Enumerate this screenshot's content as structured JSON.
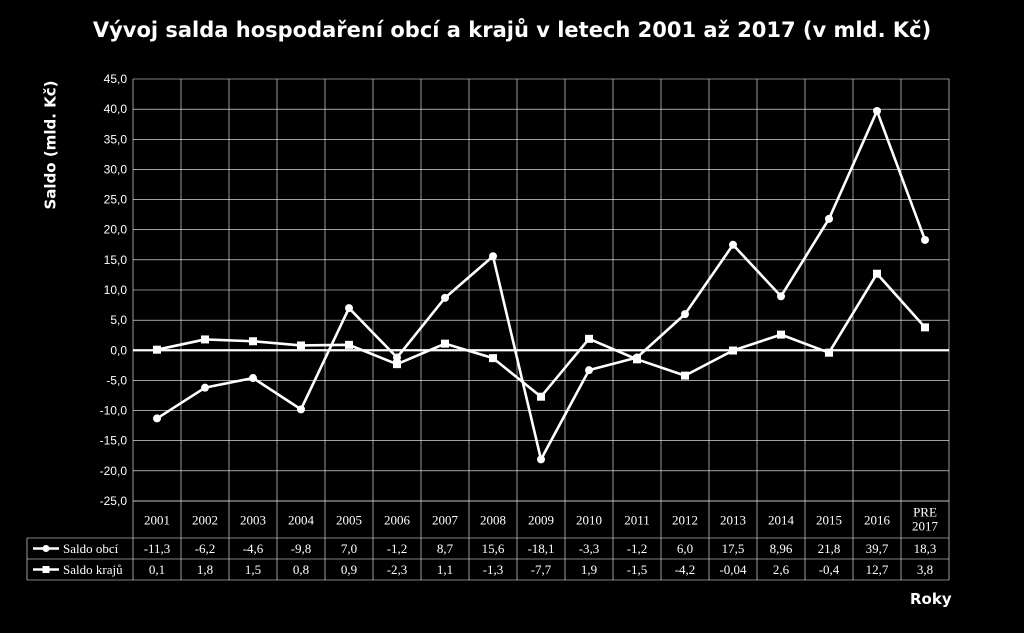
{
  "chart_data": {
    "type": "line",
    "title": "Vývoj salda hospodaření obcí a krajů v letech 2001 až 2017 (v mld. Kč)",
    "ylabel": "Saldo (mld. Kč)",
    "xlabel": "Roky",
    "ylim": [
      -25,
      45
    ],
    "yticks": [
      "45,0",
      "40,0",
      "35,0",
      "30,0",
      "25,0",
      "20,0",
      "15,0",
      "10,0",
      "5,0",
      "0,0",
      "-5,0",
      "-10,0",
      "-15,0",
      "-20,0",
      "-25,0"
    ],
    "grid": true,
    "categories": [
      "2001",
      "2002",
      "2003",
      "2004",
      "2005",
      "2006",
      "2007",
      "2008",
      "2009",
      "2010",
      "2011",
      "2012",
      "2013",
      "2014",
      "2015",
      "2016",
      "PRE 2017"
    ],
    "series": [
      {
        "name": "Saldo obcí",
        "marker": "circle",
        "values": [
          -11.3,
          -6.2,
          -4.6,
          -9.8,
          7.0,
          -1.2,
          8.7,
          15.6,
          -18.1,
          -3.3,
          -1.2,
          6.0,
          17.5,
          8.96,
          21.8,
          39.7,
          18.3
        ],
        "labels": [
          "-11,3",
          "-6,2",
          "-4,6",
          "-9,8",
          "7,0",
          "-1,2",
          "8,7",
          "15,6",
          "-18,1",
          "-3,3",
          "-1,2",
          "6,0",
          "17,5",
          "8,96",
          "21,8",
          "39,7",
          "18,3"
        ]
      },
      {
        "name": "Saldo krajů",
        "marker": "square",
        "values": [
          0.1,
          1.8,
          1.5,
          0.8,
          0.9,
          -2.3,
          1.1,
          -1.3,
          -7.7,
          1.9,
          -1.5,
          -4.2,
          -0.04,
          2.6,
          -0.4,
          12.7,
          3.8
        ],
        "labels": [
          "0,1",
          "1,8",
          "1,5",
          "0,8",
          "0,9",
          "-2,3",
          "1,1",
          "-1,3",
          "-7,7",
          "1,9",
          "-1,5",
          "-4,2",
          "-0,04",
          "2,6",
          "-0,4",
          "12,7",
          "3,8"
        ]
      }
    ],
    "colors": {
      "background": "#000000",
      "line": "#ffffff",
      "grid": "#ffffff"
    }
  }
}
